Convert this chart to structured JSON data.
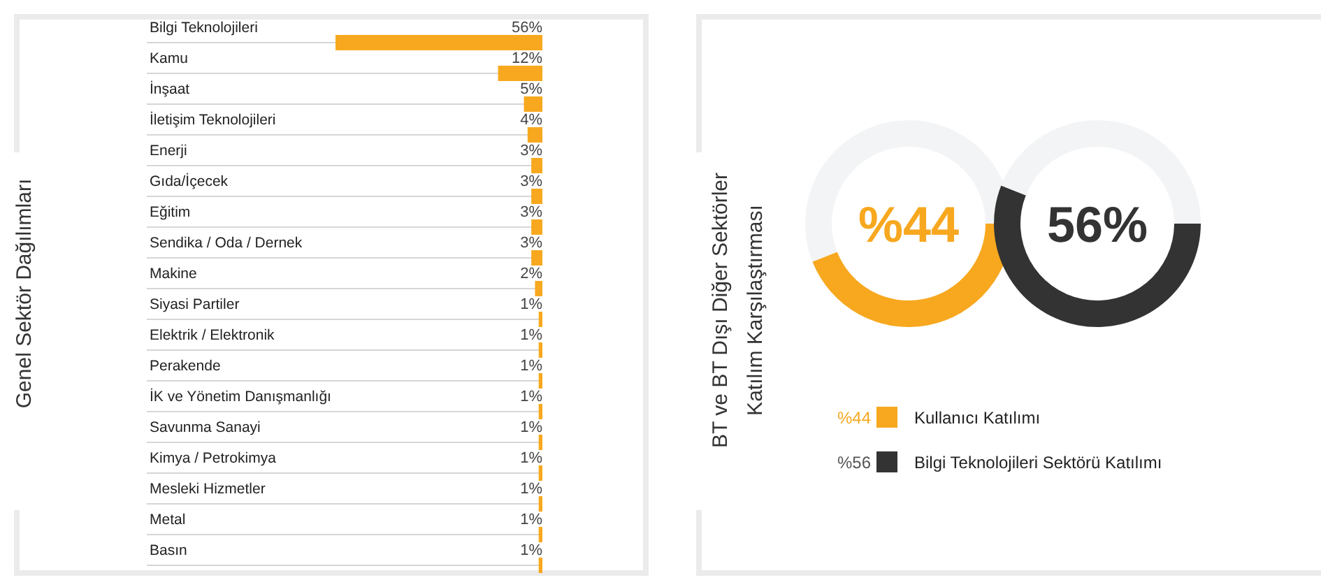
{
  "chart_data": [
    {
      "type": "bar",
      "orientation": "horizontal",
      "ylabel": "Genel Sektör Dağılımları",
      "grid": true,
      "color": "#f7a81f",
      "categories": [
        "Bilgi Teknolojileri",
        "Kamu",
        "İnşaat",
        "İletişim Teknolojileri",
        "Enerji",
        "Gıda/İçecek",
        "Eğitim",
        "Sendika / Oda / Dernek",
        "Makine",
        "Siyasi Partiler",
        "Elektrik / Elektronik",
        "Perakende",
        "İK ve Yönetim Danışmanlığı",
        "Savunma Sanayi",
        "Kimya / Petrokimya",
        "Mesleki Hizmetler",
        "Metal",
        "Basın"
      ],
      "values": [
        56,
        12,
        5,
        4,
        3,
        3,
        3,
        3,
        2,
        1,
        1,
        1,
        1,
        1,
        1,
        1,
        1,
        1
      ],
      "value_labels": [
        "56%",
        "12%",
        "5%",
        "4%",
        "3%",
        "3%",
        "3%",
        "3%",
        "2%",
        "1%",
        "1%",
        "1%",
        "1%",
        "1%",
        "1%",
        "1%",
        "1%",
        "1%"
      ]
    },
    {
      "type": "donut",
      "ylabel": "BT ve BT Dışı Diğer Sektörler Katılım Karşılaştırması",
      "legend": "bottom",
      "categories": [
        "Kullanıcı Katılımı",
        null
      ],
      "values": [
        44,
        56
      ],
      "colors": [
        "#f7a81f",
        "#f2f4f5"
      ],
      "value_labels": [
        "%44",
        null
      ],
      "annotations": [
        "%44"
      ]
    },
    {
      "type": "donut",
      "legend": "bottom",
      "categories": [
        "Bilgi Teknolojileri Sektörü Katılımı",
        null
      ],
      "values": [
        56,
        44
      ],
      "colors": [
        "#333333",
        "#f2f4f5"
      ],
      "value_labels": [
        "%56",
        null
      ],
      "annotations": [
        "56%"
      ]
    }
  ]
}
